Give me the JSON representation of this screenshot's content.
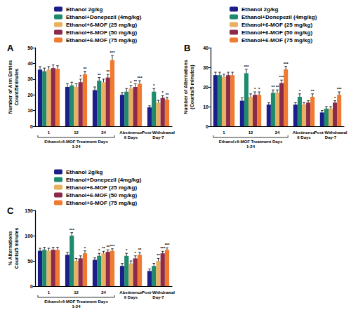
{
  "chart_data": [
    {
      "type": "bar",
      "label": "A",
      "y_label": "Number of Arm Entries\nCount/5minutes",
      "categories": [
        "1",
        "12",
        "24",
        "Abstinence\n6 Days",
        "Post-Withdrawal\nDay-7"
      ],
      "group_label": "Ethanol+6-MOF Treatment Days\n1-24",
      "ylim": [
        0,
        50
      ],
      "yticks": [
        0,
        10,
        20,
        30,
        40,
        50
      ],
      "legend": "top-left",
      "series": [
        {
          "name": "Ethanol 2g/kg",
          "color": "#1c1f8a",
          "values": [
            36,
            25,
            23,
            20,
            12
          ],
          "errors": [
            2,
            2,
            2,
            1.5,
            1
          ],
          "significance": [
            null,
            null,
            null,
            null,
            null
          ]
        },
        {
          "name": "Ethanol+Donepezil (4mg/kg)",
          "color": "#1e8a6e",
          "values": [
            35,
            26,
            29,
            22,
            22
          ],
          "errors": [
            2,
            2,
            2,
            2,
            2
          ],
          "significance": [
            null,
            null,
            "**",
            null,
            "*"
          ]
        },
        {
          "name": "Ethanol+6-MOF (25 mg/kg)",
          "color": "#e8b060",
          "values": [
            36,
            25,
            28,
            24,
            15
          ],
          "errors": [
            2,
            2,
            2,
            2,
            1.5
          ],
          "significance": [
            null,
            null,
            null,
            "*",
            null
          ]
        },
        {
          "name": "Ethanol+6-MOF (50 mg/kg)",
          "color": "#8b2a4a",
          "values": [
            37,
            28,
            31,
            25,
            18
          ],
          "errors": [
            2,
            2,
            2,
            2,
            1.5
          ],
          "significance": [
            null,
            "*",
            "**",
            "**",
            "*"
          ]
        },
        {
          "name": "Ethanol+6-MOF (75 mg/kg)",
          "color": "#f07a30",
          "values": [
            36.5,
            33,
            42,
            27,
            17
          ],
          "errors": [
            2,
            2,
            3,
            2,
            1.5
          ],
          "significance": [
            null,
            "**",
            "***",
            "***",
            "**"
          ]
        }
      ]
    },
    {
      "type": "bar",
      "label": "B",
      "y_label": "Number of Alternations\n(Counts/5 minutes)",
      "categories": [
        "1",
        "12",
        "24",
        "Abstinence\n6 Days",
        "Post-Withdrawal\nDay-7"
      ],
      "group_label": "Ethanol+6-MOF Treatment Days\n1-24",
      "ylim": [
        0,
        40
      ],
      "yticks": [
        0,
        10,
        20,
        30,
        40
      ],
      "legend": "top-left",
      "series": [
        {
          "name": "Ethanol 2g/kg",
          "color": "#1c1f8a",
          "values": [
            26,
            13,
            11,
            11,
            7
          ],
          "errors": [
            1.5,
            1.5,
            1,
            1,
            1
          ],
          "significance": [
            null,
            null,
            null,
            null,
            null
          ]
        },
        {
          "name": "Ethanol+Donepezil (4mg/kg)",
          "color": "#1e8a6e",
          "values": [
            26,
            27,
            17,
            15,
            9
          ],
          "errors": [
            1.5,
            2,
            1.5,
            1.5,
            1
          ],
          "significance": [
            null,
            "***",
            "**",
            "*",
            null
          ]
        },
        {
          "name": "Ethanol+6-MOF (25 mg/kg)",
          "color": "#e8b060",
          "values": [
            25,
            15,
            17,
            11,
            9
          ],
          "errors": [
            1.5,
            1.5,
            1.5,
            1,
            1
          ],
          "significance": [
            null,
            null,
            "**",
            null,
            null
          ]
        },
        {
          "name": "Ethanol+6-MOF (50 mg/kg)",
          "color": "#8b2a4a",
          "values": [
            26,
            16,
            22,
            12,
            12
          ],
          "errors": [
            1.5,
            1.5,
            1.5,
            1,
            1
          ],
          "significance": [
            null,
            "*",
            "***",
            null,
            "*"
          ]
        },
        {
          "name": "Ethanol+6-MOF (75 mg/kg)",
          "color": "#f07a30",
          "values": [
            26,
            16,
            29,
            15,
            16
          ],
          "errors": [
            1.5,
            1.5,
            1.5,
            1.5,
            1.5
          ],
          "significance": [
            null,
            "*",
            "***",
            "**",
            "***"
          ]
        }
      ]
    },
    {
      "type": "bar",
      "label": "C",
      "y_label": "% Alternations\nCounts/5 minutes",
      "categories": [
        "1",
        "12",
        "24",
        "Abstinence\n6 Days",
        "Post-Withdrawal\nDay-7"
      ],
      "group_label": "Ethanol+6-MOF Treatment Days\n1-24",
      "ylim": [
        0,
        150
      ],
      "yticks": [
        0,
        50,
        100,
        150
      ],
      "legend": "top-left",
      "series": [
        {
          "name": "Ethanol 2g/kg",
          "color": "#1c1f8a",
          "values": [
            70,
            62,
            52,
            40,
            30
          ],
          "errors": [
            5,
            5,
            4,
            5,
            4
          ],
          "significance": [
            null,
            null,
            null,
            null,
            null
          ]
        },
        {
          "name": "Ethanol+Donepezil (4mg/kg)",
          "color": "#1e8a6e",
          "values": [
            72,
            100,
            60,
            60,
            40
          ],
          "errors": [
            5,
            6,
            5,
            5,
            5
          ],
          "significance": [
            null,
            "***",
            "*",
            "*",
            null
          ]
        },
        {
          "name": "Ethanol+6-MOF (25 mg/kg)",
          "color": "#e8b060",
          "values": [
            70,
            50,
            65,
            45,
            50
          ],
          "errors": [
            5,
            5,
            4,
            5,
            5
          ],
          "significance": [
            null,
            null,
            "**",
            null,
            "**"
          ]
        },
        {
          "name": "Ethanol+6-MOF (50 mg/kg)",
          "color": "#8b2a4a",
          "values": [
            72,
            55,
            68,
            55,
            65
          ],
          "errors": [
            5,
            5,
            4,
            5,
            4
          ],
          "significance": [
            null,
            null,
            "**",
            "*",
            "***"
          ]
        },
        {
          "name": "Ethanol+6-MOF (75 mg/kg)",
          "color": "#f07a30",
          "values": [
            72,
            65,
            70,
            62,
            72
          ],
          "errors": [
            5,
            5,
            4,
            5,
            4
          ],
          "significance": [
            null,
            "*",
            "***",
            "**",
            "***"
          ]
        }
      ]
    }
  ]
}
